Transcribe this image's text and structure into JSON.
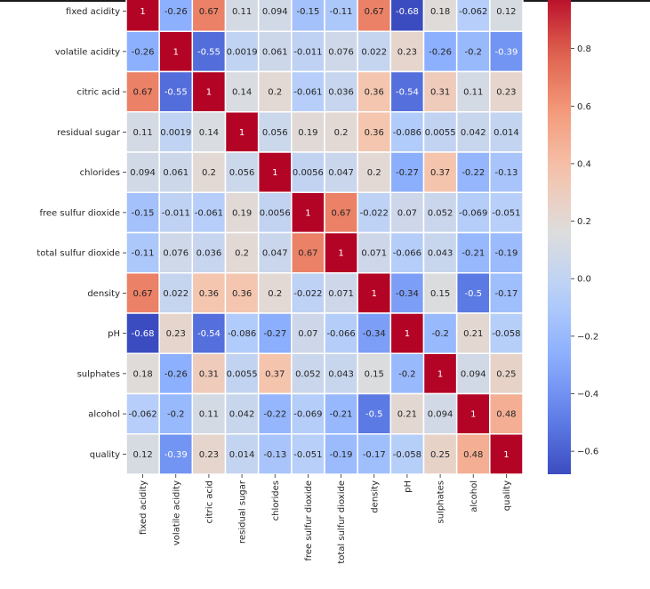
{
  "chart_data": {
    "type": "heatmap",
    "colormap": "coolwarm",
    "vmin": -0.68,
    "vmax": 1,
    "labels": [
      "fixed acidity",
      "volatile acidity",
      "citric acid",
      "residual sugar",
      "chlorides",
      "free sulfur dioxide",
      "total sulfur dioxide",
      "density",
      "pH",
      "sulphates",
      "alcohol",
      "quality"
    ],
    "values": [
      [
        "1",
        "-0.26",
        "0.67",
        "0.11",
        "0.094",
        "-0.15",
        "-0.11",
        "0.67",
        "-0.68",
        "0.18",
        "-0.062",
        "0.12"
      ],
      [
        "-0.26",
        "1",
        "-0.55",
        "0.0019",
        "0.061",
        "-0.011",
        "0.076",
        "0.022",
        "0.23",
        "-0.26",
        "-0.2",
        "-0.39"
      ],
      [
        "0.67",
        "-0.55",
        "1",
        "0.14",
        "0.2",
        "-0.061",
        "0.036",
        "0.36",
        "-0.54",
        "0.31",
        "0.11",
        "0.23"
      ],
      [
        "0.11",
        "0.0019",
        "0.14",
        "1",
        "0.056",
        "0.19",
        "0.2",
        "0.36",
        "-0.086",
        "0.0055",
        "0.042",
        "0.014"
      ],
      [
        "0.094",
        "0.061",
        "0.2",
        "0.056",
        "1",
        "0.0056",
        "0.047",
        "0.2",
        "-0.27",
        "0.37",
        "-0.22",
        "-0.13"
      ],
      [
        "-0.15",
        "-0.011",
        "-0.061",
        "0.19",
        "0.0056",
        "1",
        "0.67",
        "-0.022",
        "0.07",
        "0.052",
        "-0.069",
        "-0.051"
      ],
      [
        "-0.11",
        "0.076",
        "0.036",
        "0.2",
        "0.047",
        "0.67",
        "1",
        "0.071",
        "-0.066",
        "0.043",
        "-0.21",
        "-0.19"
      ],
      [
        "0.67",
        "0.022",
        "0.36",
        "0.36",
        "0.2",
        "-0.022",
        "0.071",
        "1",
        "-0.34",
        "0.15",
        "-0.5",
        "-0.17"
      ],
      [
        "-0.68",
        "0.23",
        "-0.54",
        "-0.086",
        "-0.27",
        "0.07",
        "-0.066",
        "-0.34",
        "1",
        "-0.2",
        "0.21",
        "-0.058"
      ],
      [
        "0.18",
        "-0.26",
        "0.31",
        "0.0055",
        "0.37",
        "0.052",
        "0.043",
        "0.15",
        "-0.2",
        "1",
        "0.094",
        "0.25"
      ],
      [
        "-0.062",
        "-0.2",
        "0.11",
        "0.042",
        "-0.22",
        "-0.069",
        "-0.21",
        "-0.5",
        "0.21",
        "0.094",
        "1",
        "0.48"
      ],
      [
        "0.12",
        "-0.39",
        "0.23",
        "0.014",
        "-0.13",
        "-0.051",
        "-0.19",
        "-0.17",
        "-0.058",
        "0.25",
        "0.48",
        "1"
      ]
    ],
    "colorbar_ticks": [
      "0.8",
      "0.6",
      "0.4",
      "0.2",
      "0.0",
      "−0.2",
      "−0.4",
      "−0.6"
    ],
    "colorbar_tick_values": [
      0.8,
      0.6,
      0.4,
      0.2,
      0,
      -0.2,
      -0.4,
      -0.6
    ],
    "annotated": true
  }
}
